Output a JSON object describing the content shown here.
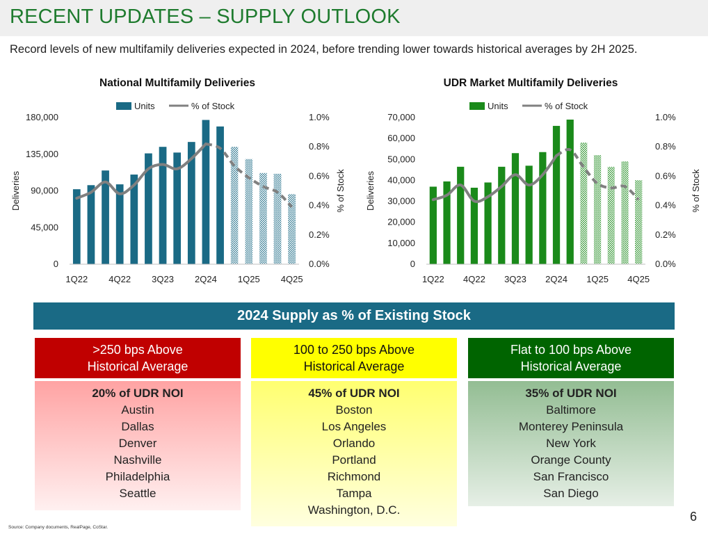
{
  "header": {
    "title": "RECENT UPDATES – SUPPLY OUTLOOK",
    "subtitle": "Record levels of new multifamily deliveries expected in 2024, before trending lower towards historical averages by 2H 2025."
  },
  "colors": {
    "title_green": "#1e7b2e",
    "national_bar": "#1a6a85",
    "udr_bar": "#1a8a1a",
    "line_gray": "#808080",
    "header_teal": "#1a6a85",
    "red": "#c00000",
    "yellow": "#ffff00",
    "green": "#006400"
  },
  "chart_data": [
    {
      "type": "bar",
      "title": "National Multifamily Deliveries",
      "categories": [
        "1Q22",
        "2Q22",
        "3Q22",
        "4Q22",
        "1Q23",
        "2Q23",
        "3Q23",
        "4Q23",
        "1Q24",
        "2Q24",
        "3Q24",
        "4Q24",
        "1Q25",
        "2Q25",
        "3Q25",
        "4Q25"
      ],
      "x_tick_labels": [
        "1Q22",
        "4Q22",
        "3Q23",
        "2Q24",
        "1Q25",
        "4Q25"
      ],
      "projected_from_index": 11,
      "series": [
        {
          "name": "Units",
          "axis": "left",
          "type": "bar",
          "values": [
            92000,
            97000,
            115000,
            98000,
            110000,
            136000,
            144000,
            137000,
            150000,
            177000,
            169000,
            144000,
            129000,
            112000,
            111000,
            86000
          ]
        },
        {
          "name": "% of Stock",
          "axis": "right",
          "type": "line",
          "style": "dashed-after-projection",
          "values": [
            0.45,
            0.49,
            0.56,
            0.48,
            0.54,
            0.65,
            0.68,
            0.65,
            0.72,
            0.82,
            0.79,
            0.67,
            0.59,
            0.53,
            0.49,
            0.39
          ]
        }
      ],
      "ylabel": "Deliveries",
      "ylim": [
        0,
        180000
      ],
      "yticks": [
        "0",
        "45,000",
        "90,000",
        "135,000",
        "180,000"
      ],
      "y2label": "% of Stock",
      "y2lim": [
        0,
        1.0
      ],
      "y2ticks": [
        "0.0%",
        "0.2%",
        "0.4%",
        "0.6%",
        "0.8%",
        "1.0%"
      ],
      "legend": [
        "Units",
        "% of Stock"
      ],
      "legend_position": "top-center"
    },
    {
      "type": "bar",
      "title": "UDR Market Multifamily Deliveries",
      "categories": [
        "1Q22",
        "2Q22",
        "3Q22",
        "4Q22",
        "1Q23",
        "2Q23",
        "3Q23",
        "4Q23",
        "1Q24",
        "2Q24",
        "3Q24",
        "4Q24",
        "1Q25",
        "2Q25",
        "3Q25",
        "4Q25"
      ],
      "x_tick_labels": [
        "1Q22",
        "4Q22",
        "3Q23",
        "2Q24",
        "1Q25",
        "4Q25"
      ],
      "projected_from_index": 11,
      "series": [
        {
          "name": "Units",
          "axis": "left",
          "type": "bar",
          "values": [
            37000,
            39500,
            46500,
            36500,
            39000,
            46500,
            53000,
            47000,
            53500,
            66000,
            69000,
            58000,
            52000,
            46500,
            49000,
            40000
          ]
        },
        {
          "name": "% of Stock",
          "axis": "right",
          "type": "line",
          "style": "dashed-after-projection",
          "values": [
            0.44,
            0.47,
            0.54,
            0.43,
            0.46,
            0.53,
            0.61,
            0.54,
            0.61,
            0.74,
            0.78,
            0.66,
            0.55,
            0.52,
            0.53,
            0.44
          ]
        }
      ],
      "ylabel": "Deliveries",
      "ylim": [
        0,
        70000
      ],
      "yticks": [
        "0",
        "10,000",
        "20,000",
        "30,000",
        "40,000",
        "50,000",
        "60,000",
        "70,000"
      ],
      "y2label": "% of Stock",
      "y2lim": [
        0,
        1.0
      ],
      "y2ticks": [
        "0.0%",
        "0.2%",
        "0.4%",
        "0.6%",
        "0.8%",
        "1.0%"
      ],
      "legend": [
        "Units",
        "% of Stock"
      ],
      "legend_position": "top-center"
    }
  ],
  "supply": {
    "header": "2024 Supply as % of Existing Stock",
    "columns": [
      {
        "heading": ">250 bps Above\nHistorical Average",
        "noi": "20% of UDR NOI",
        "cities": [
          "Austin",
          "Dallas",
          "Denver",
          "Nashville",
          "Philadelphia",
          "Seattle"
        ]
      },
      {
        "heading": "100 to 250 bps Above\nHistorical Average",
        "noi": "45% of UDR NOI",
        "cities": [
          "Boston",
          "Los Angeles",
          "Orlando",
          "Portland",
          "Richmond",
          "Tampa",
          "Washington, D.C."
        ]
      },
      {
        "heading": "Flat to 100 bps Above\nHistorical Average",
        "noi": "35% of UDR NOI",
        "cities": [
          "Baltimore",
          "Monterey Peninsula",
          "New York",
          "Orange County",
          "San Francisco",
          "San Diego"
        ]
      }
    ]
  },
  "footer": {
    "source": "Source: Company documents, RealPage, CoStar.",
    "page_number": "6"
  }
}
